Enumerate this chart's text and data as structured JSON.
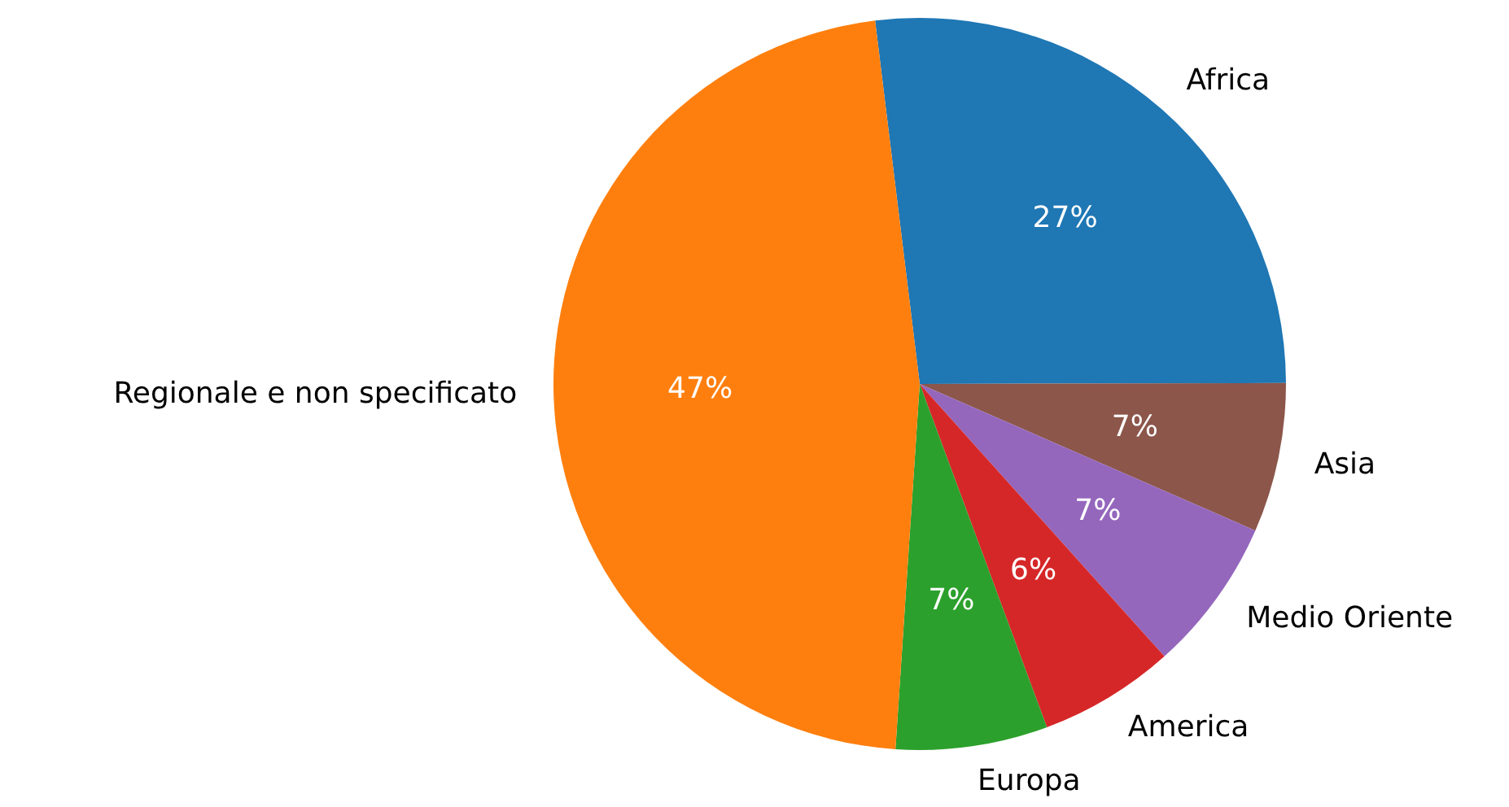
{
  "chart_data": {
    "type": "pie",
    "categories": [
      "Africa",
      "Asia",
      "Medio Oriente",
      "America",
      "Europa",
      "Regionale e non specificato"
    ],
    "values": [
      26.9,
      6.6,
      6.8,
      6.0,
      6.7,
      47.0
    ],
    "colors": [
      "#1f77b4",
      "#8c564b",
      "#9467bd",
      "#d62728",
      "#2ca02c",
      "#ff7f0e"
    ],
    "value_labels": [
      "27%",
      "7%",
      "7%",
      "6%",
      "7%",
      "47%"
    ],
    "legend": false
  }
}
